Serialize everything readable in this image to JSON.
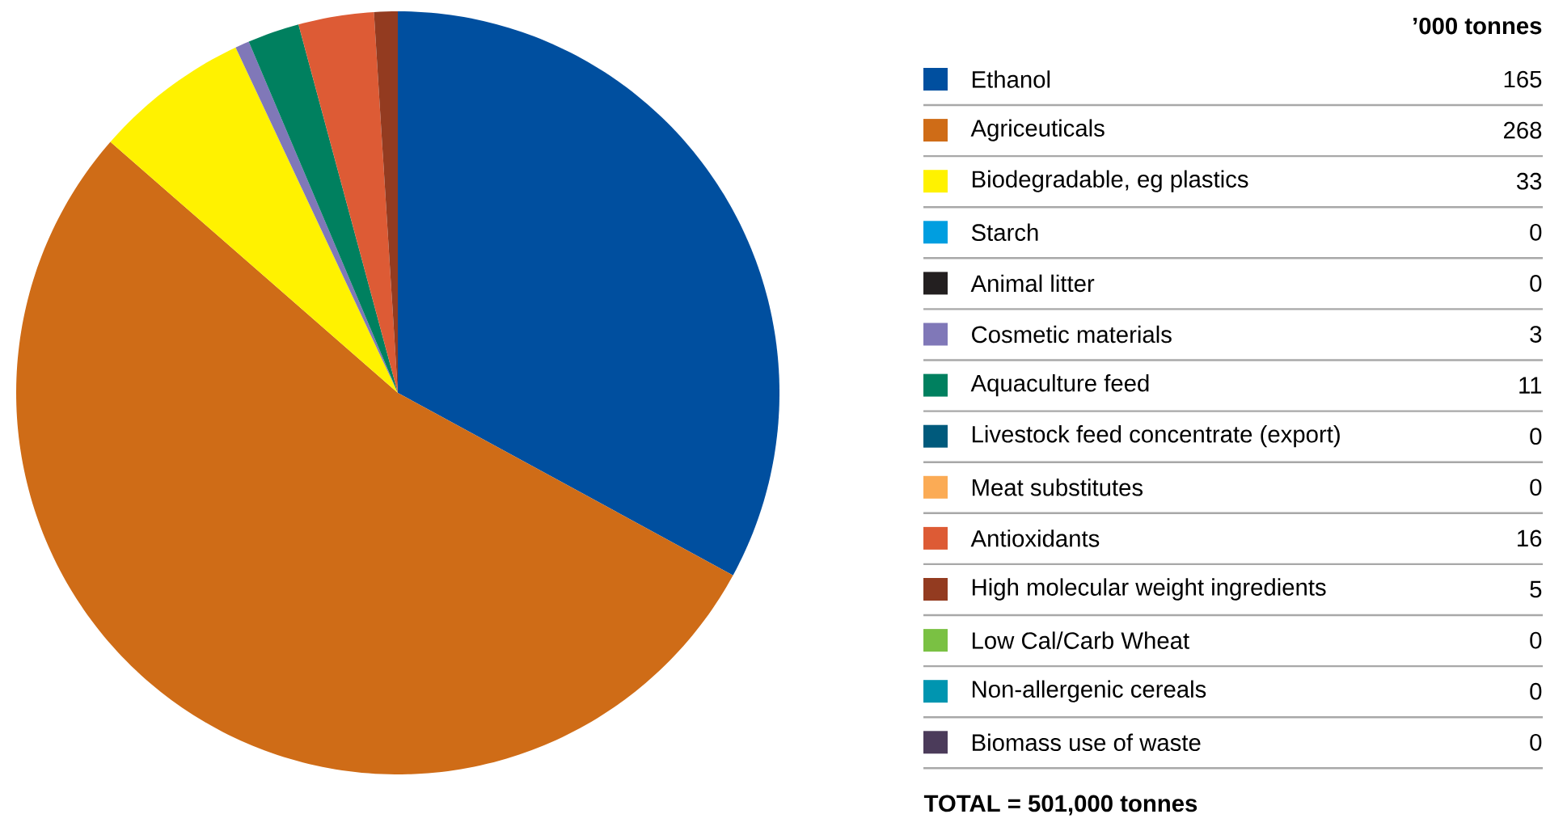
{
  "chart_data": {
    "type": "pie",
    "legend_title": "’000 tonnes",
    "legend": "right",
    "categories": [
      "Ethanol",
      "Agriceuticals",
      "Biodegradable, eg plastics",
      "Starch",
      "Animal litter",
      "Cosmetic materials",
      "Aquaculture feed",
      "Livestock feed concentrate (export)",
      "Meat substitutes",
      "Antioxidants",
      "High molecular weight ingredients",
      "Low Cal/Carb Wheat",
      "Non-allergenic cereals",
      "Biomass use of waste"
    ],
    "values": [
      165,
      268,
      33,
      0,
      0,
      3,
      11,
      0,
      0,
      16,
      5,
      0,
      0,
      0
    ],
    "value_labels": [
      "165",
      "268",
      "33",
      "0",
      "0",
      "3",
      "11",
      "0",
      "0",
      "16",
      "5",
      "0",
      "0",
      "0"
    ],
    "colors": [
      "#004f9f",
      "#cf6c17",
      "#fff200",
      "#009ee0",
      "#231f20",
      "#8078b8",
      "#00805f",
      "#005a7c",
      "#fbab55",
      "#dd5b35",
      "#933b20",
      "#7ac143",
      "#0095b0",
      "#4b3b5a"
    ],
    "annotations": [
      "TOTAL = 501,000 tonnes"
    ]
  }
}
